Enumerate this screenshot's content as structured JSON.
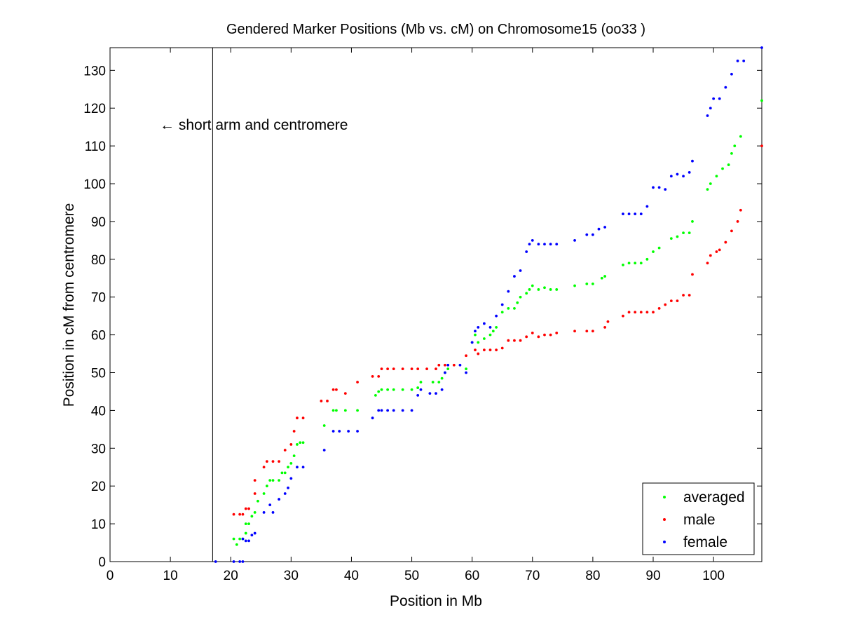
{
  "chart_data": {
    "type": "scatter",
    "title": "Gendered Marker Positions (Mb vs. cM) on Chromosome15 (oo33 )",
    "xlabel": "Position in Mb",
    "ylabel": "Position in cM from centromere",
    "xlim": [
      0,
      108
    ],
    "ylim": [
      0,
      136
    ],
    "xticks": [
      0,
      10,
      20,
      30,
      40,
      50,
      60,
      70,
      80,
      90,
      100
    ],
    "yticks": [
      0,
      10,
      20,
      30,
      40,
      50,
      60,
      70,
      80,
      90,
      100,
      110,
      120,
      130
    ],
    "grid": false,
    "legend_position": "bottom-right",
    "annotation": {
      "text": "← short arm and centromere",
      "vline_x": 17
    },
    "series": [
      {
        "name": "averaged",
        "color": "#00ff00",
        "points": [
          [
            20.5,
            6
          ],
          [
            21,
            4.5
          ],
          [
            21.5,
            6
          ],
          [
            22,
            6
          ],
          [
            22.5,
            7.5
          ],
          [
            22.5,
            10
          ],
          [
            23,
            10
          ],
          [
            23.5,
            12
          ],
          [
            24,
            13
          ],
          [
            24.5,
            16
          ],
          [
            25.5,
            18
          ],
          [
            26,
            20
          ],
          [
            26.5,
            21.5
          ],
          [
            27,
            21.5
          ],
          [
            28,
            21.5
          ],
          [
            28.5,
            23.5
          ],
          [
            29,
            23.5
          ],
          [
            29.5,
            25
          ],
          [
            30,
            26
          ],
          [
            30.5,
            28
          ],
          [
            31,
            31
          ],
          [
            31.5,
            31.5
          ],
          [
            32,
            31.5
          ],
          [
            35.5,
            36
          ],
          [
            37,
            40
          ],
          [
            37.5,
            40
          ],
          [
            39,
            40
          ],
          [
            41,
            40
          ],
          [
            44,
            44
          ],
          [
            44.5,
            45
          ],
          [
            45,
            45.5
          ],
          [
            46,
            45.5
          ],
          [
            47,
            45.5
          ],
          [
            48.5,
            45.5
          ],
          [
            50,
            45.5
          ],
          [
            51,
            46
          ],
          [
            51.5,
            47.5
          ],
          [
            53.5,
            47.5
          ],
          [
            54.5,
            47.5
          ],
          [
            55,
            48.5
          ],
          [
            55.5,
            50
          ],
          [
            56,
            51
          ],
          [
            59,
            51
          ],
          [
            60,
            58
          ],
          [
            60.5,
            60
          ],
          [
            61,
            58
          ],
          [
            62,
            59
          ],
          [
            63,
            60
          ],
          [
            63.5,
            61
          ],
          [
            64,
            62
          ],
          [
            65,
            66
          ],
          [
            66,
            67
          ],
          [
            67,
            67
          ],
          [
            67.5,
            68.5
          ],
          [
            68,
            70
          ],
          [
            69,
            71
          ],
          [
            69.5,
            72
          ],
          [
            70,
            73
          ],
          [
            71,
            72
          ],
          [
            72,
            72.5
          ],
          [
            73,
            72
          ],
          [
            74,
            72
          ],
          [
            77,
            73
          ],
          [
            79,
            73.5
          ],
          [
            80,
            73.5
          ],
          [
            81.5,
            75
          ],
          [
            82,
            75.5
          ],
          [
            85,
            78.5
          ],
          [
            86,
            79
          ],
          [
            87,
            79
          ],
          [
            88,
            79
          ],
          [
            89,
            80
          ],
          [
            90,
            82
          ],
          [
            91,
            83
          ],
          [
            93,
            85.5
          ],
          [
            94,
            86
          ],
          [
            95,
            87
          ],
          [
            96,
            87
          ],
          [
            96.5,
            90
          ],
          [
            99,
            98.5
          ],
          [
            99.5,
            100
          ],
          [
            100.5,
            102
          ],
          [
            101.5,
            104
          ],
          [
            102.5,
            105
          ],
          [
            103,
            108
          ],
          [
            103.5,
            110
          ],
          [
            104.5,
            112.5
          ],
          [
            108,
            122
          ]
        ]
      },
      {
        "name": "male",
        "color": "#ff0000",
        "points": [
          [
            20.5,
            12.5
          ],
          [
            21.5,
            12.5
          ],
          [
            22,
            12.5
          ],
          [
            22.5,
            14
          ],
          [
            23,
            14
          ],
          [
            24,
            18
          ],
          [
            24,
            21.5
          ],
          [
            25.5,
            25
          ],
          [
            26,
            26.5
          ],
          [
            27,
            26.5
          ],
          [
            28,
            26.5
          ],
          [
            29,
            29.5
          ],
          [
            30,
            31
          ],
          [
            30.5,
            34.5
          ],
          [
            31,
            38
          ],
          [
            32,
            38
          ],
          [
            35,
            42.5
          ],
          [
            36,
            42.5
          ],
          [
            37,
            45.5
          ],
          [
            37.5,
            45.5
          ],
          [
            39,
            44.5
          ],
          [
            41,
            47.5
          ],
          [
            43.5,
            49
          ],
          [
            44.5,
            49
          ],
          [
            45,
            51
          ],
          [
            46,
            51
          ],
          [
            47,
            51
          ],
          [
            48.5,
            51
          ],
          [
            50,
            51
          ],
          [
            51,
            51
          ],
          [
            52.5,
            51
          ],
          [
            54,
            51
          ],
          [
            54.5,
            52
          ],
          [
            55.5,
            52
          ],
          [
            57,
            52
          ],
          [
            59,
            54.5
          ],
          [
            60.5,
            56
          ],
          [
            61,
            55
          ],
          [
            62,
            56
          ],
          [
            63,
            56
          ],
          [
            64,
            56
          ],
          [
            65,
            56.5
          ],
          [
            66,
            58.5
          ],
          [
            67,
            58.5
          ],
          [
            68,
            58.5
          ],
          [
            69,
            59.5
          ],
          [
            70,
            60.5
          ],
          [
            71,
            59.5
          ],
          [
            72,
            60
          ],
          [
            73,
            60
          ],
          [
            74,
            60.5
          ],
          [
            77,
            61
          ],
          [
            79,
            61
          ],
          [
            80,
            61
          ],
          [
            82,
            62
          ],
          [
            82.5,
            63.5
          ],
          [
            85,
            65
          ],
          [
            86,
            66
          ],
          [
            87,
            66
          ],
          [
            88,
            66
          ],
          [
            89,
            66
          ],
          [
            90,
            66
          ],
          [
            91,
            67
          ],
          [
            92,
            68
          ],
          [
            93,
            69
          ],
          [
            94,
            69
          ],
          [
            95,
            70.5
          ],
          [
            96,
            70.5
          ],
          [
            96.5,
            76
          ],
          [
            99,
            79
          ],
          [
            99.5,
            81
          ],
          [
            100.5,
            82
          ],
          [
            101,
            82.5
          ],
          [
            102,
            84.5
          ],
          [
            103,
            87.5
          ],
          [
            104,
            90
          ],
          [
            104.5,
            93
          ],
          [
            108,
            110
          ]
        ]
      },
      {
        "name": "female",
        "color": "#0000ff",
        "points": [
          [
            17.5,
            0
          ],
          [
            20.5,
            0
          ],
          [
            21.5,
            0
          ],
          [
            22,
            0
          ],
          [
            22,
            6
          ],
          [
            22.5,
            5.5
          ],
          [
            23,
            5.5
          ],
          [
            23.5,
            7
          ],
          [
            24,
            7.5
          ],
          [
            25.5,
            13
          ],
          [
            26.5,
            15
          ],
          [
            27,
            13
          ],
          [
            28,
            16.5
          ],
          [
            29,
            18
          ],
          [
            29.5,
            19.5
          ],
          [
            30,
            22
          ],
          [
            31,
            25
          ],
          [
            32,
            25
          ],
          [
            35.5,
            29.5
          ],
          [
            37,
            34.5
          ],
          [
            38,
            34.5
          ],
          [
            39.5,
            34.5
          ],
          [
            41,
            34.5
          ],
          [
            43.5,
            38
          ],
          [
            44.5,
            40
          ],
          [
            45,
            40
          ],
          [
            46,
            40
          ],
          [
            47,
            40
          ],
          [
            48.5,
            40
          ],
          [
            50,
            40
          ],
          [
            51,
            44
          ],
          [
            51.5,
            45.5
          ],
          [
            53,
            44.5
          ],
          [
            54,
            44.5
          ],
          [
            55,
            45.5
          ],
          [
            55.5,
            50
          ],
          [
            56,
            52
          ],
          [
            58,
            52
          ],
          [
            59,
            50
          ],
          [
            60,
            58
          ],
          [
            60.5,
            61
          ],
          [
            61,
            62
          ],
          [
            62,
            63
          ],
          [
            63,
            62
          ],
          [
            64,
            65
          ],
          [
            65,
            68
          ],
          [
            66,
            71.5
          ],
          [
            67,
            75.5
          ],
          [
            68,
            77
          ],
          [
            69,
            82
          ],
          [
            69.5,
            84
          ],
          [
            70,
            85
          ],
          [
            71,
            84
          ],
          [
            72,
            84
          ],
          [
            73,
            84
          ],
          [
            74,
            84
          ],
          [
            77,
            85
          ],
          [
            79,
            86.5
          ],
          [
            80,
            86.5
          ],
          [
            81,
            88
          ],
          [
            82,
            88.5
          ],
          [
            85,
            92
          ],
          [
            86,
            92
          ],
          [
            87,
            92
          ],
          [
            88,
            92
          ],
          [
            89,
            94
          ],
          [
            90,
            99
          ],
          [
            91,
            99
          ],
          [
            92,
            98.5
          ],
          [
            93,
            102
          ],
          [
            94,
            102.5
          ],
          [
            95,
            102
          ],
          [
            96,
            103
          ],
          [
            96.5,
            106
          ],
          [
            99,
            118
          ],
          [
            99.5,
            120
          ],
          [
            100,
            122.5
          ],
          [
            101,
            122.5
          ],
          [
            102,
            125.5
          ],
          [
            103,
            129
          ],
          [
            104,
            132.5
          ],
          [
            105,
            132.5
          ],
          [
            108,
            136
          ]
        ]
      }
    ]
  }
}
